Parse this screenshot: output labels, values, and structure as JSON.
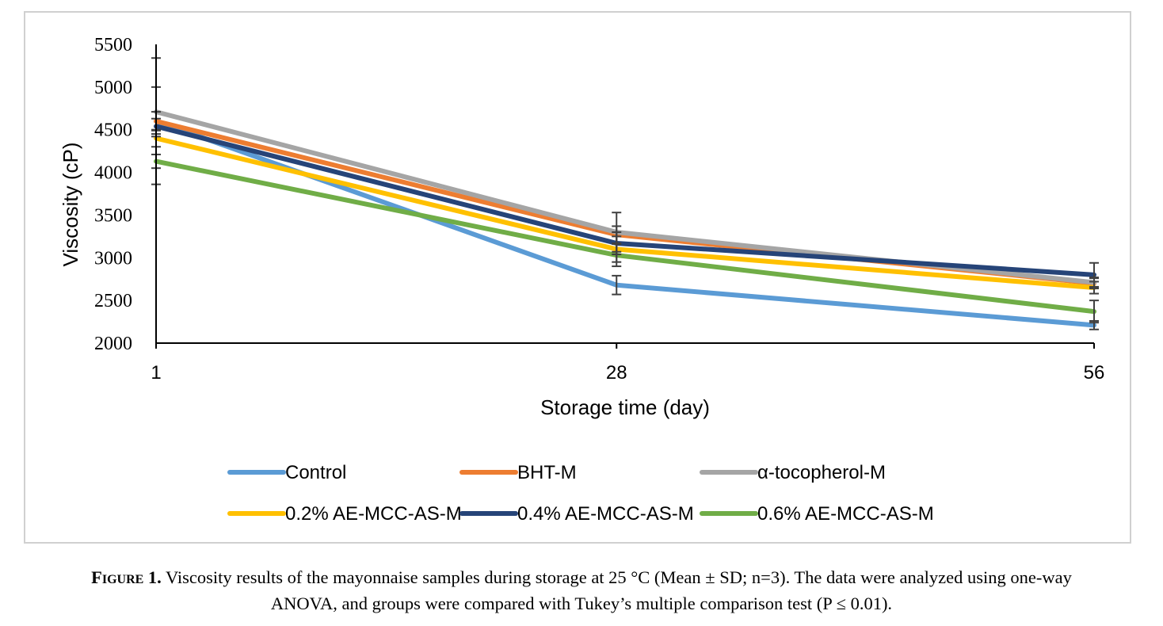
{
  "chart_data": {
    "type": "line",
    "title": "",
    "xlabel": "Storage time (day)",
    "ylabel": "Viscosity (cP)",
    "x": [
      "1",
      "28",
      "56"
    ],
    "ylim": [
      2000,
      5500
    ],
    "yticks": [
      "5500",
      "5000",
      "4500",
      "4000",
      "3500",
      "3000",
      "2500",
      "2000"
    ],
    "grid": false,
    "legend_position": "bottom",
    "series": [
      {
        "name": "Control",
        "color": "#5b9bd5",
        "values": [
          4600,
          2680,
          2210
        ],
        "errors": [
          740,
          110,
          50
        ]
      },
      {
        "name": "BHT-M",
        "color": "#ed7d31",
        "values": [
          4600,
          3270,
          2700
        ],
        "errors": [
          110,
          100,
          60
        ]
      },
      {
        "name": "α-tocopherol-M",
        "color": "#a5a5a5",
        "values": [
          4710,
          3300,
          2710
        ],
        "errors": [
          290,
          230,
          60
        ]
      },
      {
        "name": "0.2% AE-MCC-AS-M",
        "color": "#ffc000",
        "values": [
          4400,
          3100,
          2650
        ],
        "errors": [
          100,
          150,
          70
        ]
      },
      {
        "name": "0.4% AE-MCC-AS-M",
        "color": "#264478",
        "values": [
          4540,
          3170,
          2800
        ],
        "errors": [
          90,
          130,
          140
        ]
      },
      {
        "name": "0.6% AE-MCC-AS-M",
        "color": "#70ad47",
        "values": [
          4130,
          3030,
          2370
        ],
        "errors": [
          80,
          130,
          130
        ]
      }
    ]
  },
  "caption": {
    "label": "Figure 1.",
    "line1": " Viscosity results of the mayonnaise samples during  storage at 25 °C (Mean ± SD; n=3). The data were analyzed using one-way",
    "line2": "ANOVA, and groups were compared with Tukey’s multiple comparison test (P ≤ 0.01)."
  }
}
